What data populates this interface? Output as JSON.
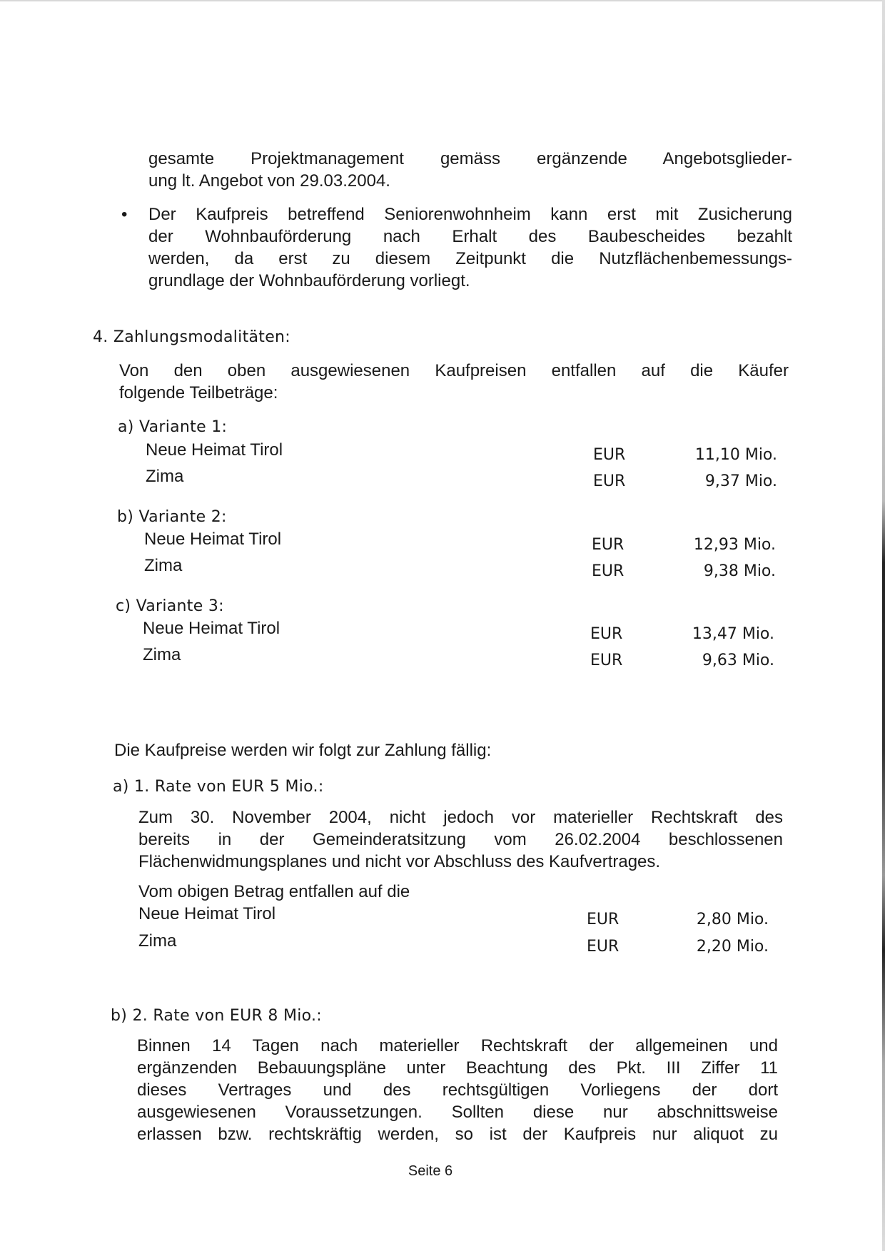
{
  "intro": {
    "lines": [
      "gesamte Projektmanagement gemäss ergänzende Angebotsglieder-",
      "ung lt. Angebot von 29.03.2004."
    ],
    "bullet": "•",
    "bullet_lines": [
      "Der Kaufpreis betreffend Seniorenwohnheim kann erst mit Zusicherung",
      "der Wohnbauförderung nach Erhalt des Baubescheides bezahlt",
      "werden, da erst zu diesem Zeitpunkt die Nutzflächenbemessungs-",
      "grundlage der Wohnbauförderung vorliegt."
    ]
  },
  "section4": {
    "heading": "4. Zahlungsmodalitäten:",
    "intro_lines": [
      "Von den oben ausgewiesenen Kaufpreisen entfallen auf die Käufer",
      "folgende Teilbeträge:"
    ],
    "variants": [
      {
        "label": "a) Variante 1:",
        "rows": [
          {
            "name": "Neue Heimat Tirol",
            "currency": "EUR",
            "amount": "11,10 Mio."
          },
          {
            "name": "Zima",
            "currency": "EUR",
            "amount": "9,37 Mio."
          }
        ]
      },
      {
        "label": "b) Variante 2:",
        "rows": [
          {
            "name": "Neue Heimat Tirol",
            "currency": "EUR",
            "amount": "12,93 Mio."
          },
          {
            "name": "Zima",
            "currency": "EUR",
            "amount": "9,38 Mio."
          }
        ]
      },
      {
        "label": "c) Variante 3:",
        "rows": [
          {
            "name": "Neue Heimat Tirol",
            "currency": "EUR",
            "amount": "13,47 Mio."
          },
          {
            "name": "Zima",
            "currency": "EUR",
            "amount": "9,63 Mio."
          }
        ]
      }
    ],
    "due_intro": "Die Kaufpreise werden wir folgt zur Zahlung fällig:",
    "rate1": {
      "heading": "a) 1. Rate von EUR 5 Mio.:",
      "lines": [
        "Zum 30. November 2004, nicht jedoch vor materieller Rechtskraft des",
        "bereits in der Gemeinderatsitzung vom 26.02.2004 beschlossenen",
        "Flächenwidmungsplanes und nicht vor Abschluss des Kaufvertrages."
      ],
      "split_intro": "Vom obigen Betrag entfallen auf die",
      "rows": [
        {
          "name": "Neue Heimat Tirol",
          "currency": "EUR",
          "amount": "2,80 Mio."
        },
        {
          "name": "Zima",
          "currency": "EUR",
          "amount": "2,20 Mio."
        }
      ]
    },
    "rate2": {
      "heading": "b) 2. Rate von EUR 8 Mio.:",
      "lines": [
        "Binnen 14 Tagen nach materieller Rechtskraft der allgemeinen und",
        "ergänzenden Bebauungspläne unter Beachtung des Pkt. III Ziffer 11",
        "dieses Vertrages und des rechtsgültigen Vorliegens der dort",
        "ausgewiesenen Voraussetzungen. Sollten diese nur abschnittsweise",
        "erlassen bzw. rechtskräftig werden, so ist der Kaufpreis nur aliquot zu"
      ]
    }
  },
  "footer": {
    "page": "Seite 6"
  }
}
